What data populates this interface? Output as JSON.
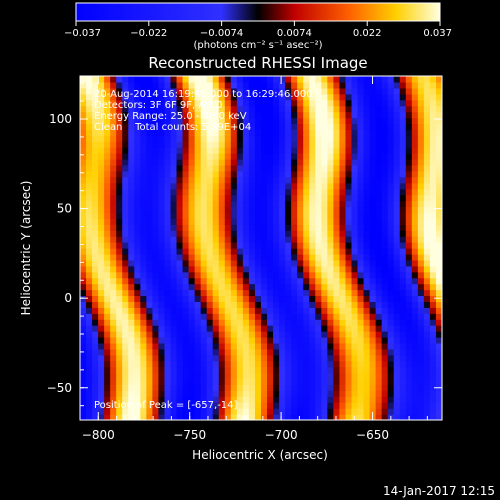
{
  "chart_data": {
    "type": "heatmap",
    "title": "Reconstructed RHESSI Image",
    "xlabel": "Heliocentric X (arcsec)",
    "ylabel": "Heliocentric Y (arcsec)",
    "xlim": [
      -810,
      -612
    ],
    "ylim": [
      -68,
      124
    ],
    "x_ticks": [
      -800,
      -750,
      -700,
      -650
    ],
    "y_ticks": [
      -50,
      0,
      50,
      100
    ],
    "colorbar": {
      "min": -0.037,
      "max": 0.037,
      "ticks": [
        "-0.037",
        "-0.022",
        "-0.0074",
        "0.0074",
        "0.022",
        "0.037"
      ],
      "unit_label": "(photons cm⁻² s⁻¹ asec⁻²)"
    },
    "annotations": [
      "20-Aug-2014 16:19:46.000 to 16:29:46.000",
      "Detectors: 3F 6F 9F, Att 0",
      "Energy Range: 25.0 - 50.0 keV",
      "Clean    Total counts: 5.39E+04"
    ],
    "peak_label": "Position of Peak = [-657,-14]",
    "timestamp": "14-Jan-2017 12:15",
    "pattern": {
      "bright_stripe_centers_at_y0": [
        -792,
        -727,
        -666
      ],
      "period_arcsec": 62,
      "stripe_tilt_arcsec_per_arcsec": 0.15
    }
  }
}
